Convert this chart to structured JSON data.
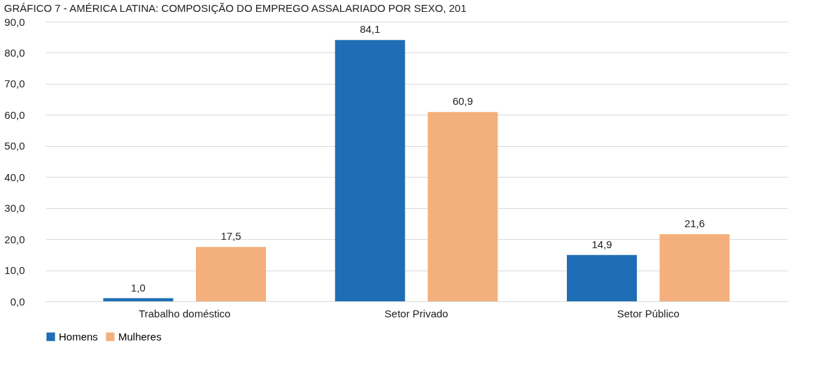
{
  "chart_data": {
    "type": "bar",
    "title": "GRÁFICO 7 - AMÉRICA LATINA: COMPOSIÇÃO DO EMPREGO ASSALARIADO POR SEXO, 201",
    "categories": [
      "Trabalho doméstico",
      "Setor Privado",
      "Setor Público"
    ],
    "series": [
      {
        "name": "Homens",
        "color": "#1f6eb5",
        "values": [
          1.0,
          84.1,
          14.9
        ],
        "value_labels": [
          "1,0",
          "84,1",
          "14,9"
        ]
      },
      {
        "name": "Mulheres",
        "color": "#f4b07c",
        "values": [
          17.5,
          60.9,
          21.6
        ],
        "value_labels": [
          "17,5",
          "60,9",
          "21,6"
        ]
      }
    ],
    "ylim": [
      0,
      90
    ],
    "yticks": [
      {
        "value": 0,
        "label": "0,0"
      },
      {
        "value": 10,
        "label": "10,0"
      },
      {
        "value": 20,
        "label": "20,0"
      },
      {
        "value": 30,
        "label": "30,0"
      },
      {
        "value": 40,
        "label": "40,0"
      },
      {
        "value": 50,
        "label": "50,0"
      },
      {
        "value": 60,
        "label": "60,0"
      },
      {
        "value": 70,
        "label": "70,0"
      },
      {
        "value": 80,
        "label": "80,0"
      },
      {
        "value": 90,
        "label": "90,0"
      }
    ],
    "grid": "y",
    "legend": "bottom"
  }
}
